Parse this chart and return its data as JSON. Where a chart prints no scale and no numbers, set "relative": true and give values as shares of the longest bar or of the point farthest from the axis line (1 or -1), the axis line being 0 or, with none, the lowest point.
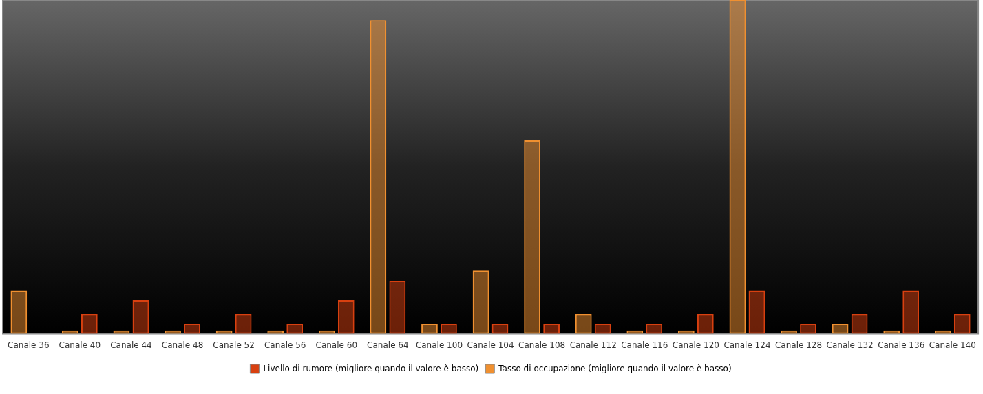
{
  "chart_data": {
    "type": "bar",
    "relative": true,
    "categories": [
      "Canale 36",
      "Canale 40",
      "Canale 44",
      "Canale 48",
      "Canale 52",
      "Canale 56",
      "Canale 60",
      "Canale 64",
      "Canale 100",
      "Canale 104",
      "Canale 108",
      "Canale 112",
      "Canale 116",
      "Canale 120",
      "Canale 124",
      "Canale 128",
      "Canale 132",
      "Canale 136",
      "Canale 140"
    ],
    "series": [
      {
        "name": "Tasso di occupazione (migliore quando il valore è basso)",
        "color": "#f09030",
        "values": [
          0.13,
          0.01,
          0.01,
          0.01,
          0.01,
          0.01,
          0.01,
          0.94,
          0.03,
          0.19,
          0.58,
          0.06,
          0.01,
          0.01,
          1,
          0.01,
          0.03,
          0.01,
          0.01
        ]
      },
      {
        "name": "Livello di rumore (migliore quando il valore è basso)",
        "color": "#d84010",
        "values": [
          0,
          0.06,
          0.1,
          0.03,
          0.06,
          0.03,
          0.1,
          0.16,
          0.03,
          0.03,
          0.03,
          0.03,
          0.03,
          0.06,
          0.13,
          0.03,
          0.06,
          0.13,
          0.06
        ]
      }
    ],
    "legend": "bottom"
  }
}
